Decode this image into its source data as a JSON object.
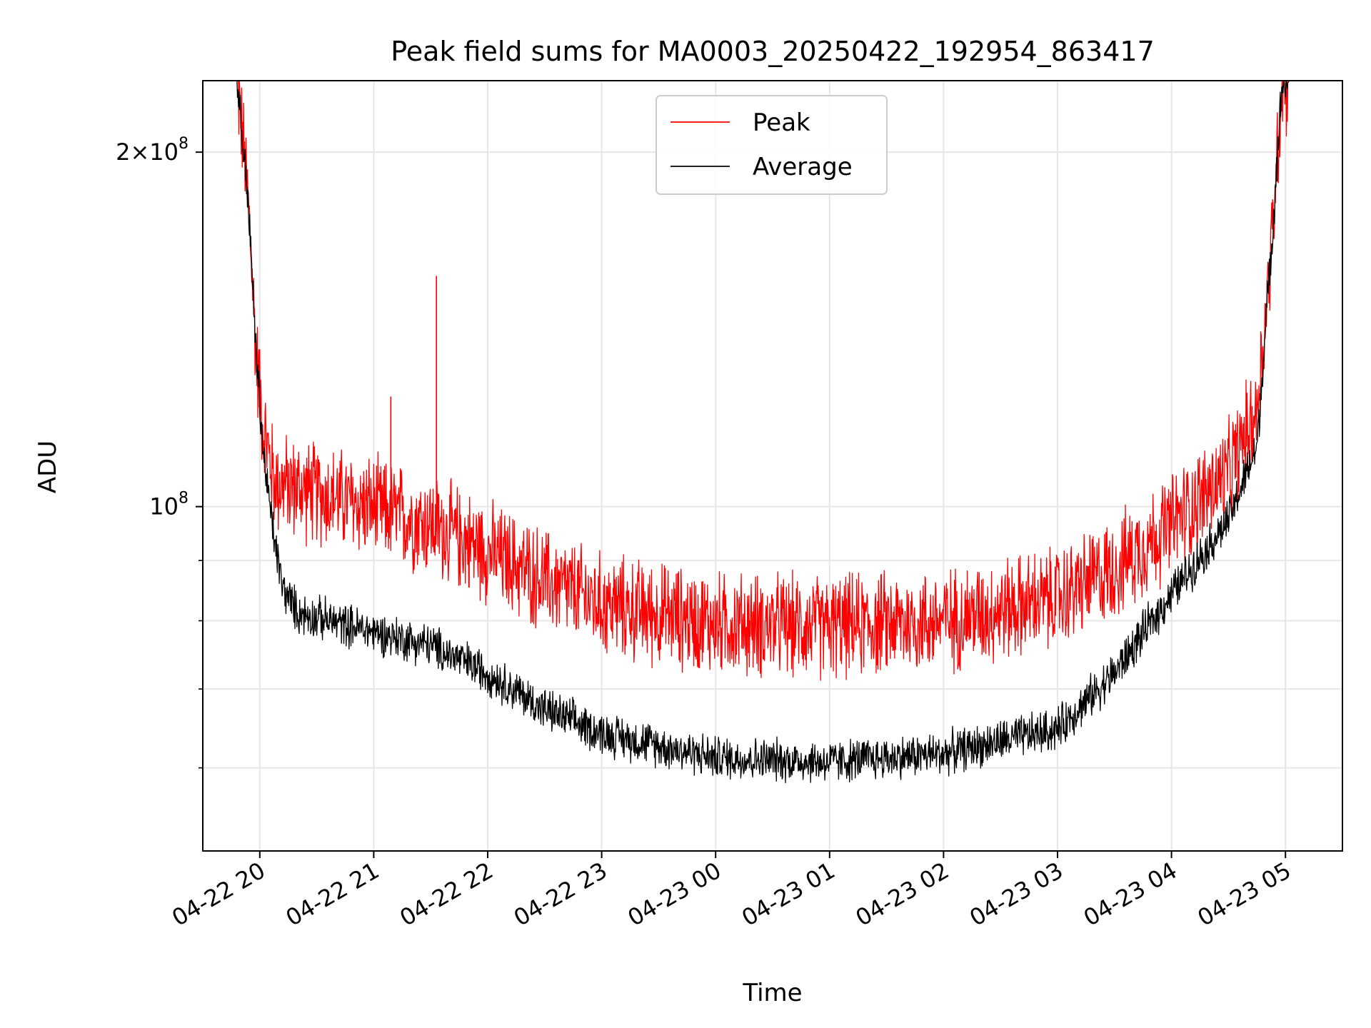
{
  "chart_data": {
    "type": "line",
    "title": "Peak field sums for MA0003_20250422_192954_863417",
    "xlabel": "Time",
    "ylabel": "ADU",
    "y_scale": "log",
    "ylim": [
      51000000,
      230000000
    ],
    "x_range": [
      "2025-04-22 19:30",
      "2025-04-23 05:30"
    ],
    "grid": true,
    "legend": {
      "placement": "upper center"
    },
    "x_ticks": [
      {
        "t": "2025-04-22 20:00",
        "label": "04-22 20"
      },
      {
        "t": "2025-04-22 21:00",
        "label": "04-22 21"
      },
      {
        "t": "2025-04-22 22:00",
        "label": "04-22 22"
      },
      {
        "t": "2025-04-22 23:00",
        "label": "04-22 23"
      },
      {
        "t": "2025-04-23 00:00",
        "label": "04-23 00"
      },
      {
        "t": "2025-04-23 01:00",
        "label": "04-23 01"
      },
      {
        "t": "2025-04-23 02:00",
        "label": "04-23 02"
      },
      {
        "t": "2025-04-23 03:00",
        "label": "04-23 03"
      },
      {
        "t": "2025-04-23 04:00",
        "label": "04-23 04"
      },
      {
        "t": "2025-04-23 05:00",
        "label": "04-23 05"
      }
    ],
    "y_major_ticks": [
      {
        "value": 100000000,
        "base": "10",
        "exp": "8"
      },
      {
        "value": 200000000,
        "coef": "2",
        "base": "10",
        "exp": "8"
      }
    ],
    "y_minor_ticks": [
      60000000,
      70000000,
      80000000,
      90000000
    ],
    "series": [
      {
        "name": "Peak",
        "color": "#ff0000",
        "noise_band": 0.12,
        "points": [
          {
            "t": "2025-04-22 19:30",
            "v": 230000000
          },
          {
            "t": "2025-04-22 19:48",
            "v": 230000000
          },
          {
            "t": "2025-04-22 19:54",
            "v": 180000000
          },
          {
            "t": "2025-04-22 19:58",
            "v": 135000000
          },
          {
            "t": "2025-04-22 20:02",
            "v": 115000000
          },
          {
            "t": "2025-04-22 20:08",
            "v": 104000000
          },
          {
            "t": "2025-04-22 20:30",
            "v": 102000000
          },
          {
            "t": "2025-04-22 21:00",
            "v": 99000000
          },
          {
            "t": "2025-04-22 21:30",
            "v": 96000000
          },
          {
            "t": "2025-04-22 22:00",
            "v": 91000000
          },
          {
            "t": "2025-04-22 22:30",
            "v": 86000000
          },
          {
            "t": "2025-04-22 23:00",
            "v": 82000000
          },
          {
            "t": "2025-04-23 00:00",
            "v": 79000000
          },
          {
            "t": "2025-04-23 01:00",
            "v": 78500000
          },
          {
            "t": "2025-04-23 02:00",
            "v": 79500000
          },
          {
            "t": "2025-04-23 03:00",
            "v": 83000000
          },
          {
            "t": "2025-04-23 03:30",
            "v": 88000000
          },
          {
            "t": "2025-04-23 04:00",
            "v": 96000000
          },
          {
            "t": "2025-04-23 04:30",
            "v": 106000000
          },
          {
            "t": "2025-04-23 04:45",
            "v": 120000000
          },
          {
            "t": "2025-04-23 04:52",
            "v": 160000000
          },
          {
            "t": "2025-04-23 04:58",
            "v": 225000000
          },
          {
            "t": "2025-04-23 05:02",
            "v": 230000000
          },
          {
            "t": "2025-04-23 05:30",
            "v": 230000000
          }
        ],
        "spikes": [
          {
            "t": "2025-04-22 21:09",
            "v": 124000000
          },
          {
            "t": "2025-04-22 21:33",
            "v": 157000000
          }
        ]
      },
      {
        "name": "Average",
        "color": "#000000",
        "noise_band": 0.05,
        "points": [
          {
            "t": "2025-04-22 19:30",
            "v": 230000000
          },
          {
            "t": "2025-04-22 19:48",
            "v": 230000000
          },
          {
            "t": "2025-04-22 19:54",
            "v": 180000000
          },
          {
            "t": "2025-04-22 19:58",
            "v": 135000000
          },
          {
            "t": "2025-04-22 20:02",
            "v": 110000000
          },
          {
            "t": "2025-04-22 20:07",
            "v": 95000000
          },
          {
            "t": "2025-04-22 20:12",
            "v": 85000000
          },
          {
            "t": "2025-04-22 20:20",
            "v": 81000000
          },
          {
            "t": "2025-04-22 21:00",
            "v": 78000000
          },
          {
            "t": "2025-04-22 21:30",
            "v": 76000000
          },
          {
            "t": "2025-04-22 22:00",
            "v": 72000000
          },
          {
            "t": "2025-04-22 22:30",
            "v": 67000000
          },
          {
            "t": "2025-04-22 23:00",
            "v": 64000000
          },
          {
            "t": "2025-04-23 00:00",
            "v": 61000000
          },
          {
            "t": "2025-04-23 01:00",
            "v": 60500000
          },
          {
            "t": "2025-04-23 02:00",
            "v": 61500000
          },
          {
            "t": "2025-04-23 03:00",
            "v": 64500000
          },
          {
            "t": "2025-04-23 03:30",
            "v": 72000000
          },
          {
            "t": "2025-04-23 04:00",
            "v": 84000000
          },
          {
            "t": "2025-04-23 04:30",
            "v": 97000000
          },
          {
            "t": "2025-04-23 04:45",
            "v": 112000000
          },
          {
            "t": "2025-04-23 04:52",
            "v": 160000000
          },
          {
            "t": "2025-04-23 04:58",
            "v": 225000000
          },
          {
            "t": "2025-04-23 05:02",
            "v": 230000000
          },
          {
            "t": "2025-04-23 05:30",
            "v": 230000000
          }
        ],
        "spikes": []
      }
    ]
  }
}
